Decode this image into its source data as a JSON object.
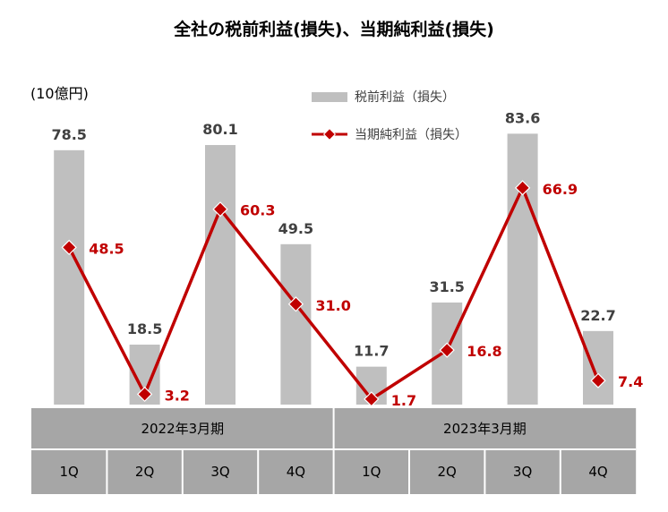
{
  "chart_data": {
    "type": "bar+line",
    "title": "全社の税前利益(損失)、当期純利益(損失)",
    "unit": "(10億円)",
    "years": [
      {
        "label": "2022年3月期",
        "quarters": [
          "1Q",
          "2Q",
          "3Q",
          "4Q"
        ]
      },
      {
        "label": "2023年3月期",
        "quarters": [
          "1Q",
          "2Q",
          "3Q",
          "4Q"
        ]
      }
    ],
    "categories": [
      "1Q",
      "2Q",
      "3Q",
      "4Q",
      "1Q",
      "2Q",
      "3Q",
      "4Q"
    ],
    "series": [
      {
        "name": "税前利益（損失）",
        "kind": "bar",
        "color": "#bfbfbf",
        "values": [
          78.5,
          18.5,
          80.1,
          49.5,
          11.7,
          31.5,
          83.6,
          22.7
        ],
        "labels": [
          "78.5",
          "18.5",
          "80.1",
          "49.5",
          "11.7",
          "31.5",
          "83.6",
          "22.7"
        ]
      },
      {
        "name": "当期純利益（損失）",
        "kind": "line",
        "color": "#c00000",
        "values": [
          48.5,
          3.2,
          60.3,
          31.0,
          1.7,
          16.8,
          66.9,
          7.4
        ],
        "labels": [
          "48.5",
          "3.2",
          "60.3",
          "31.0",
          "1.7",
          "16.8",
          "66.9",
          "7.4"
        ]
      }
    ],
    "ylim": [
      0,
      100
    ],
    "grid": false,
    "legend_position": "top-right"
  },
  "colors": {
    "header_bg": "#a6a6a6",
    "bar": "#bfbfbf",
    "line": "#c00000"
  }
}
